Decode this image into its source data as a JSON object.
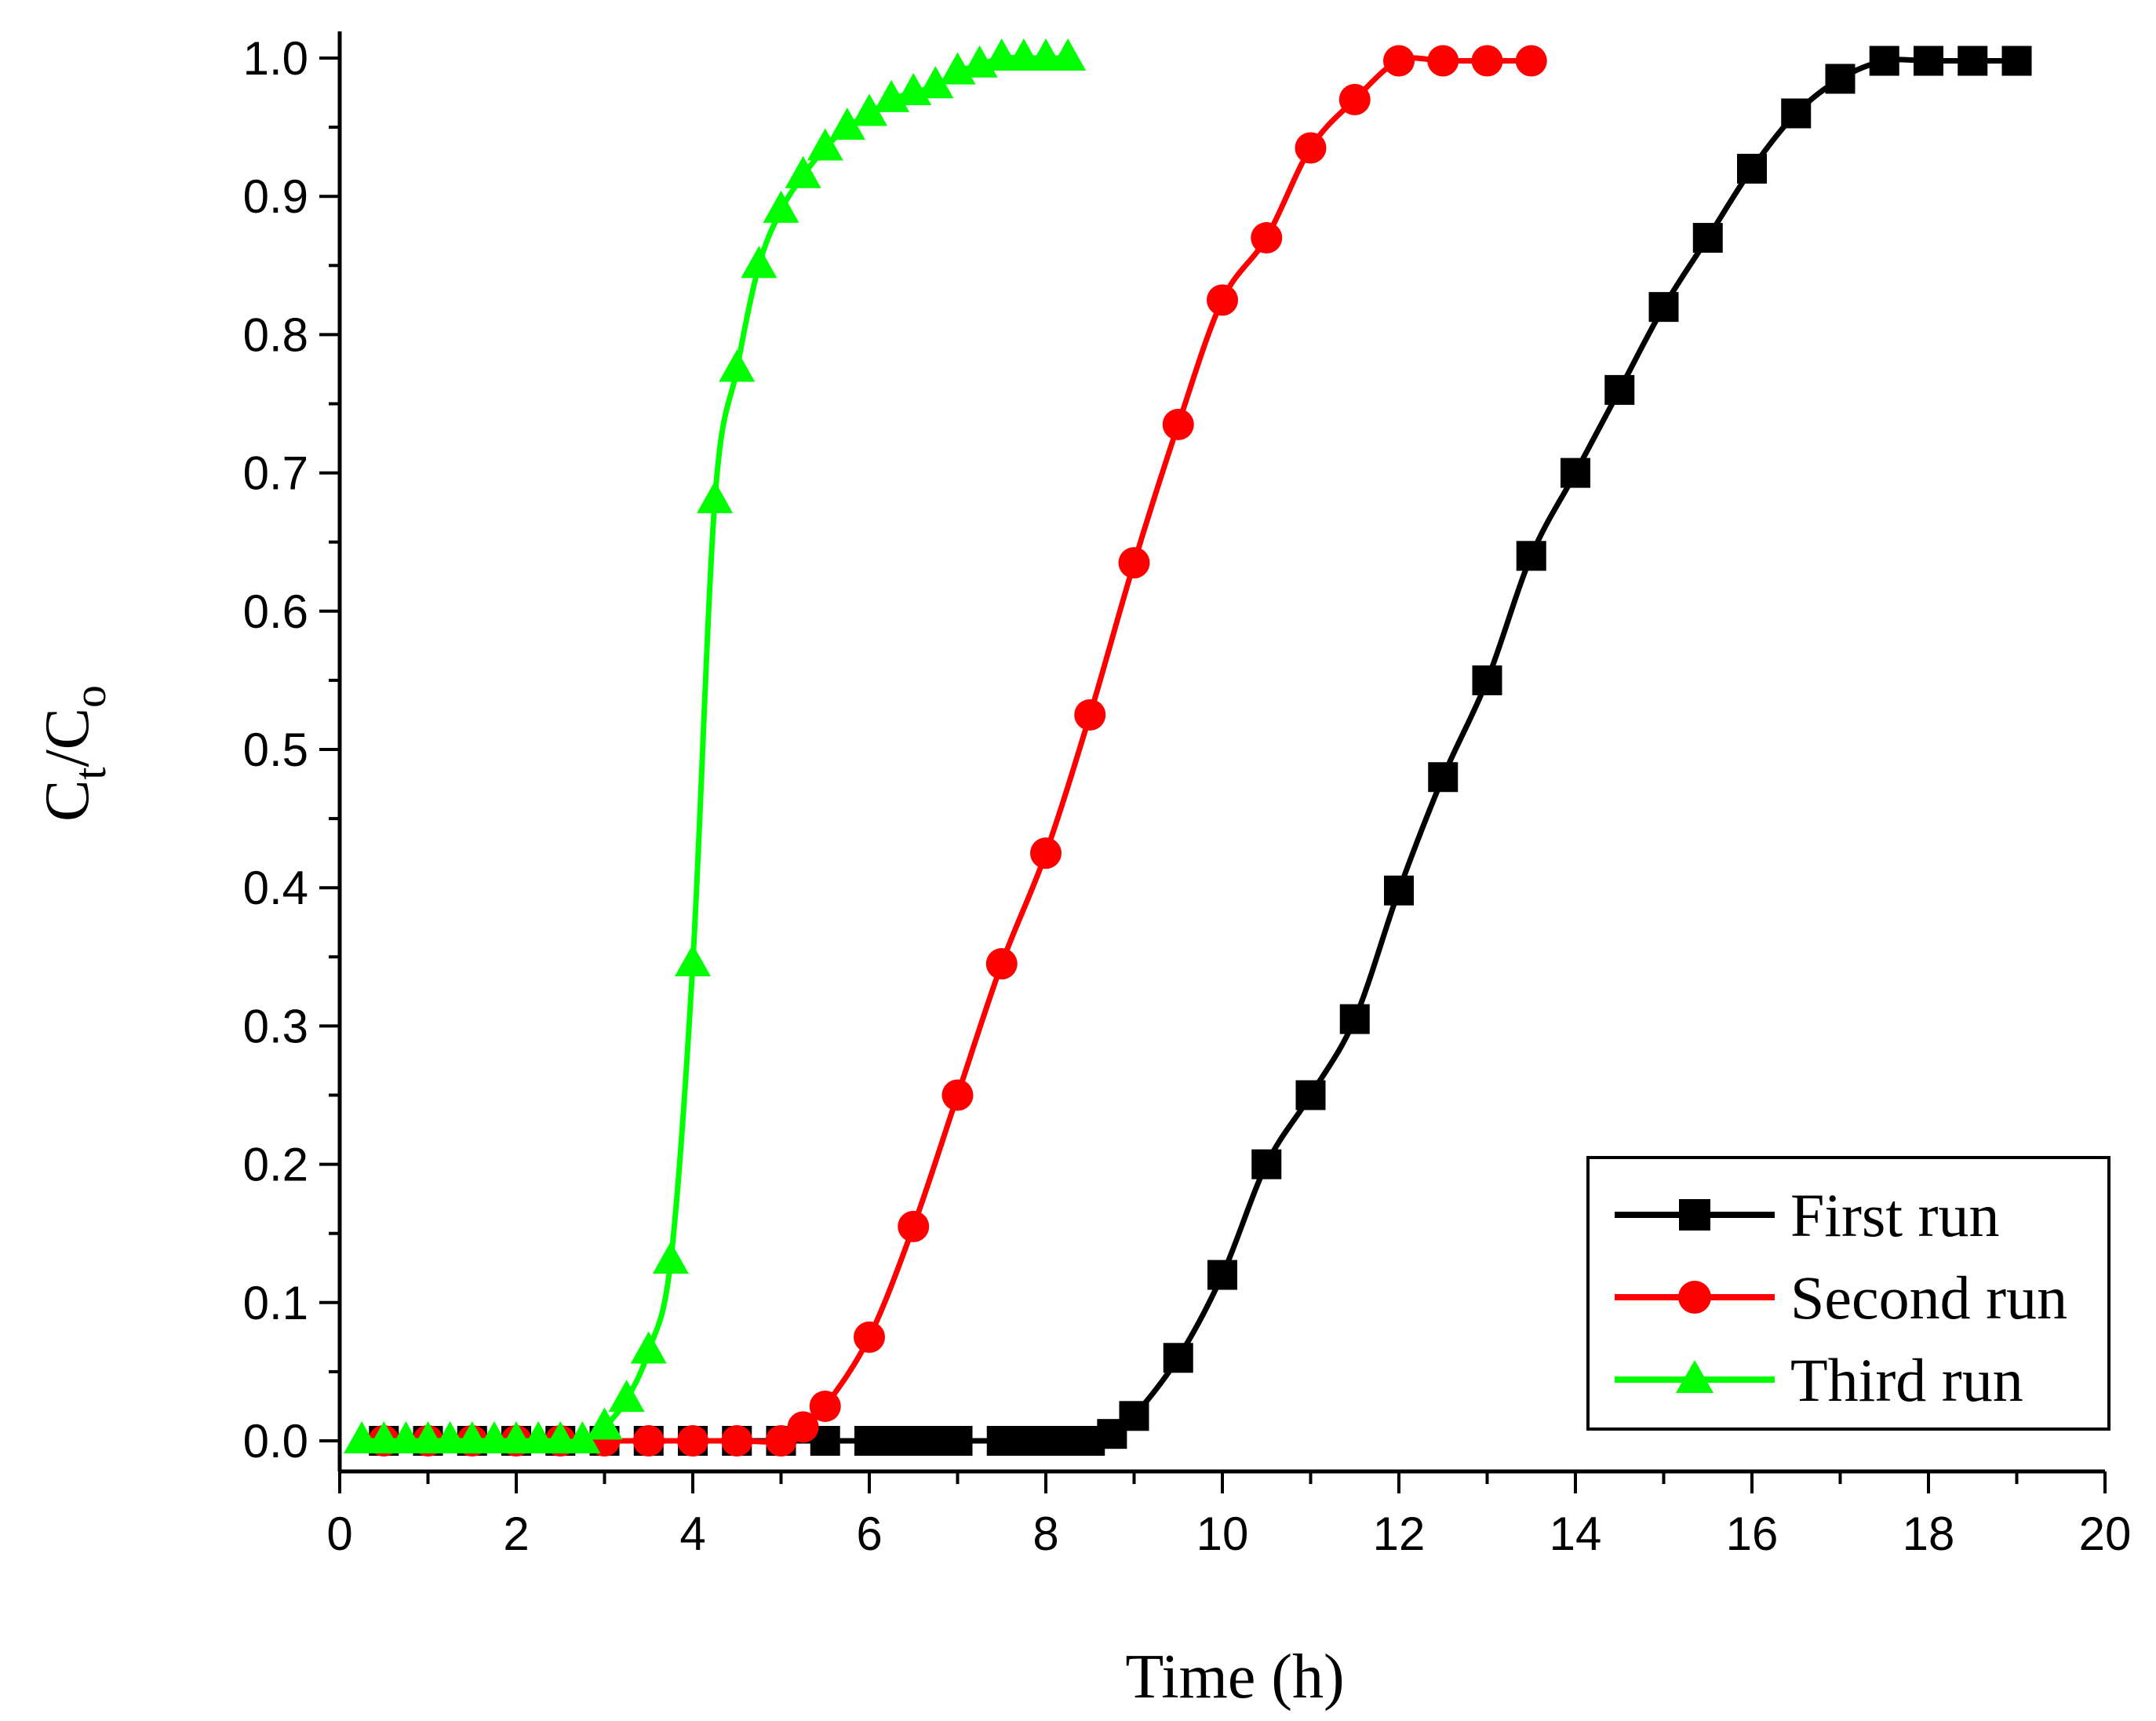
{
  "chart_data": {
    "type": "line",
    "title": "",
    "xlabel": "Time (h)",
    "ylabel": {
      "main": "C",
      "sub1": "t",
      "sep": "/C",
      "sub2": "o"
    },
    "xlim": [
      0,
      20
    ],
    "ylim": [
      0,
      1.0
    ],
    "xticks": [
      "0",
      "2",
      "4",
      "6",
      "8",
      "10",
      "12",
      "14",
      "16",
      "18",
      "20"
    ],
    "xtick_values": [
      0,
      2,
      4,
      6,
      8,
      10,
      12,
      14,
      16,
      18,
      20
    ],
    "yticks": [
      "0.0",
      "0.1",
      "0.2",
      "0.3",
      "0.4",
      "0.5",
      "0.6",
      "0.7",
      "0.8",
      "0.9",
      "1.0"
    ],
    "ytick_values": [
      0,
      0.1,
      0.2,
      0.3,
      0.4,
      0.5,
      0.6,
      0.7,
      0.8,
      0.9,
      1.0
    ],
    "legend_position": "bottom-right",
    "series": [
      {
        "name": "First run",
        "color": "#000000",
        "marker": "square",
        "x": [
          0.5,
          1,
          1.5,
          2,
          2.5,
          3,
          3.5,
          4,
          4.5,
          5,
          5.5,
          6,
          6.25,
          6.5,
          6.75,
          7,
          7.5,
          7.75,
          8,
          8.25,
          8.5,
          8.75,
          9,
          9.5,
          10,
          10.5,
          11,
          11.5,
          12,
          12.5,
          13,
          13.5,
          14,
          14.5,
          15,
          15.5,
          16,
          16.5,
          17,
          17.5,
          18,
          18.5,
          19
        ],
        "y": [
          0,
          0,
          0,
          0,
          0,
          0,
          0,
          0,
          0,
          0,
          0,
          0,
          0,
          0,
          0,
          0,
          0,
          0,
          0,
          0,
          0,
          0.005,
          0.018,
          0.06,
          0.12,
          0.2,
          0.25,
          0.305,
          0.398,
          0.48,
          0.55,
          0.64,
          0.7,
          0.76,
          0.82,
          0.87,
          0.92,
          0.96,
          0.985,
          0.998,
          0.998,
          0.998,
          0.998
        ]
      },
      {
        "name": "Second run",
        "color": "#ff0000",
        "marker": "circle",
        "x": [
          0.5,
          1,
          1.5,
          2,
          2.5,
          3,
          3.5,
          4,
          4.5,
          5,
          5.25,
          5.5,
          6,
          6.5,
          7,
          7.5,
          8,
          8.5,
          9,
          9.5,
          10,
          10.5,
          11,
          11.5,
          12,
          12.5,
          13,
          13.5
        ],
        "y": [
          0,
          0,
          0,
          0,
          0,
          0,
          0,
          0,
          0,
          0,
          0.01,
          0.025,
          0.075,
          0.155,
          0.25,
          0.345,
          0.425,
          0.525,
          0.635,
          0.735,
          0.825,
          0.87,
          0.935,
          0.97,
          0.998,
          0.998,
          0.998,
          0.998
        ]
      },
      {
        "name": "Third run",
        "color": "#00ff00",
        "marker": "triangle",
        "x": [
          0.25,
          0.5,
          0.75,
          1,
          1.25,
          1.5,
          1.75,
          2,
          2.25,
          2.5,
          2.75,
          3,
          3.25,
          3.5,
          3.75,
          4,
          4.25,
          4.5,
          4.75,
          5,
          5.25,
          5.5,
          5.75,
          6,
          6.25,
          6.5,
          6.75,
          7,
          7.25,
          7.5,
          7.75,
          8,
          8.25
        ],
        "y": [
          0,
          0,
          0,
          0,
          0,
          0,
          0,
          0,
          0,
          0,
          0,
          0.01,
          0.03,
          0.065,
          0.13,
          0.345,
          0.68,
          0.775,
          0.85,
          0.89,
          0.915,
          0.935,
          0.95,
          0.96,
          0.97,
          0.975,
          0.98,
          0.99,
          0.995,
          1.0,
          1.0,
          1.0,
          1.0
        ]
      }
    ]
  }
}
